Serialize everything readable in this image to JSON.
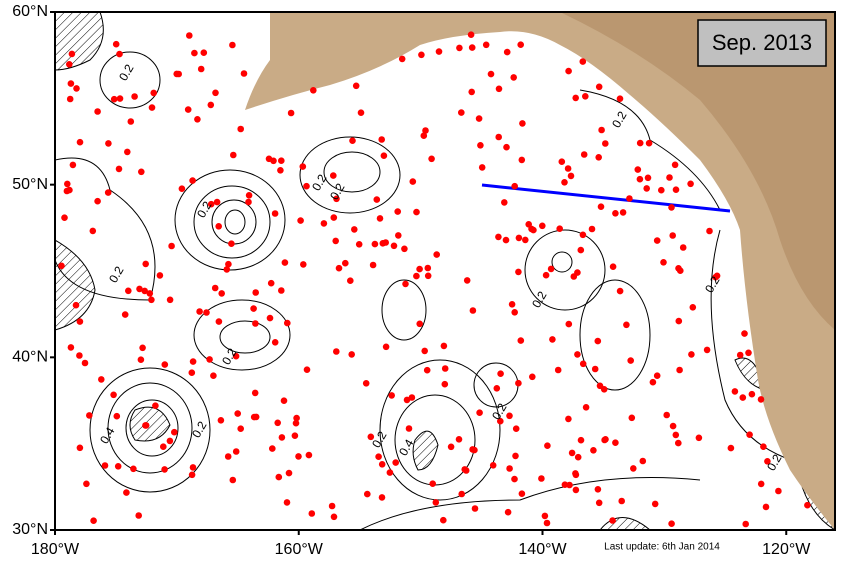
{
  "map": {
    "title": "Sep. 2013",
    "footer": "Last update: 6th Jan 2014",
    "lonlim": [
      -180,
      -116
    ],
    "latlim": [
      30,
      60
    ],
    "lat_ticks": [
      {
        "value": 60,
        "label": "60°N"
      },
      {
        "value": 50,
        "label": "50°N"
      },
      {
        "value": 40,
        "label": "40°N"
      },
      {
        "value": 30,
        "label": "30°N"
      }
    ],
    "lon_ticks": [
      {
        "value": -180,
        "label": "180°W"
      },
      {
        "value": -160,
        "label": "160°W"
      },
      {
        "value": -140,
        "label": "140°W"
      },
      {
        "value": -120,
        "label": "120°W"
      }
    ],
    "contour_labels": [
      "0.2",
      "0.2",
      "0.2",
      "0.2",
      "0.2",
      "0.2",
      "0.4",
      "0.2",
      "0.2",
      "0.2",
      "0.4",
      "0.2",
      "0.2",
      "0.2",
      "0.2"
    ]
  }
}
